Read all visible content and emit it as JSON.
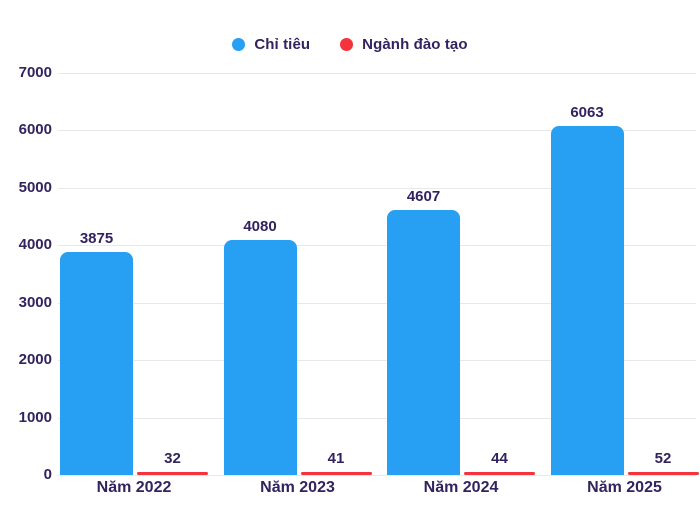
{
  "legend": {
    "items": [
      {
        "label": "Chỉ tiêu",
        "color": "#279ff2"
      },
      {
        "label": "Ngành đào tạo",
        "color": "#f4333c"
      }
    ]
  },
  "chart_data": {
    "type": "bar",
    "categories": [
      "Năm 2022",
      "Năm 2023",
      "Năm 2024",
      "Năm 2025"
    ],
    "series": [
      {
        "name": "Chỉ tiêu",
        "color": "#279ff2",
        "values": [
          3875,
          4080,
          4607,
          6063
        ]
      },
      {
        "name": "Ngành đào tạo",
        "color": "#f4333c",
        "values": [
          32,
          41,
          44,
          52
        ]
      }
    ],
    "title": "",
    "xlabel": "",
    "ylabel": "",
    "ylim": [
      0,
      7000
    ],
    "yticks": [
      0,
      1000,
      2000,
      3000,
      4000,
      5000,
      6000,
      7000
    ],
    "grid": "horizontal",
    "legend_position": "top-center",
    "data_labels": true
  },
  "colors": {
    "background": "#ffffff",
    "text": "#32235f",
    "gridline": "#e8e8e8"
  }
}
